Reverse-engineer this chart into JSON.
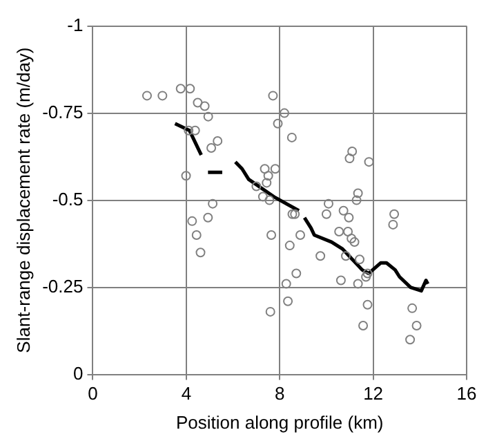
{
  "chart_data": {
    "type": "scatter",
    "xlabel": "Position along profile (km)",
    "ylabel": "Slant-range displacement rate (m/day)",
    "xlim": [
      0,
      16
    ],
    "xticks": [
      0,
      4,
      8,
      12,
      16
    ],
    "ylim": [
      0,
      -1
    ],
    "yticks": [
      0,
      -0.25,
      -0.5,
      -0.75,
      -1
    ],
    "grid": true,
    "legend": false,
    "series": [
      {
        "type": "scatter",
        "marker": "circle",
        "color": "#808080",
        "x": [
          2.32,
          2.98,
          3.76,
          4.16,
          4.49,
          4.79,
          4.94,
          4.1,
          4.38,
          5.07,
          5.34,
          3.99,
          5.13,
          4.25,
          4.93,
          4.44,
          4.61,
          7.71,
          7.92,
          7.36,
          7.81,
          7.51,
          7.44,
          7.0,
          7.28,
          7.56,
          7.64,
          7.6,
          8.2,
          8.52,
          8.54,
          8.65,
          8.43,
          8.88,
          8.71,
          8.28,
          8.35,
          9.74,
          10.09,
          10.0,
          10.73,
          10.96,
          10.54,
          10.92,
          11.07,
          11.2,
          10.83,
          11.42,
          11.1,
          10.99,
          11.82,
          11.35,
          11.29,
          10.62,
          11.35,
          11.69,
          11.76,
          11.76,
          11.57,
          12.9,
          12.85,
          13.67,
          13.86,
          13.58
        ],
        "values": [
          -0.8,
          -0.8,
          -0.82,
          -0.82,
          -0.78,
          -0.77,
          -0.74,
          -0.7,
          -0.7,
          -0.65,
          -0.67,
          -0.57,
          -0.49,
          -0.44,
          -0.45,
          -0.4,
          -0.35,
          -0.8,
          -0.72,
          -0.59,
          -0.59,
          -0.57,
          -0.55,
          -0.54,
          -0.51,
          -0.5,
          -0.4,
          -0.18,
          -0.75,
          -0.68,
          -0.46,
          -0.46,
          -0.37,
          -0.4,
          -0.29,
          -0.26,
          -0.21,
          -0.34,
          -0.49,
          -0.46,
          -0.47,
          -0.45,
          -0.41,
          -0.41,
          -0.39,
          -0.38,
          -0.34,
          -0.33,
          -0.64,
          -0.62,
          -0.61,
          -0.52,
          -0.5,
          -0.27,
          -0.26,
          -0.28,
          -0.29,
          -0.2,
          -0.14,
          -0.46,
          -0.43,
          -0.19,
          -0.14,
          -0.1
        ]
      },
      {
        "type": "line",
        "marker": "none",
        "line_style": "solid",
        "color": "#000000",
        "x": [
          3.52,
          4.14,
          4.64,
          4.8,
          4.93,
          5.54,
          5.8,
          6.1,
          6.39,
          6.67,
          7.75,
          8.82,
          8.94,
          9.06,
          9.34,
          9.48,
          10.22,
          10.69,
          11.53,
          11.81,
          12.32,
          12.57,
          12.94,
          13.13,
          13.6,
          14.06,
          14.26,
          14.34
        ],
        "values": [
          -0.72,
          -0.7,
          -0.63,
          null,
          -0.58,
          -0.58,
          null,
          -0.61,
          -0.59,
          -0.56,
          -0.51,
          -0.47,
          null,
          -0.45,
          -0.42,
          -0.4,
          -0.38,
          -0.36,
          -0.3,
          -0.29,
          -0.32,
          -0.32,
          -0.3,
          -0.28,
          -0.25,
          -0.24,
          -0.27,
          -0.26
        ]
      }
    ]
  }
}
